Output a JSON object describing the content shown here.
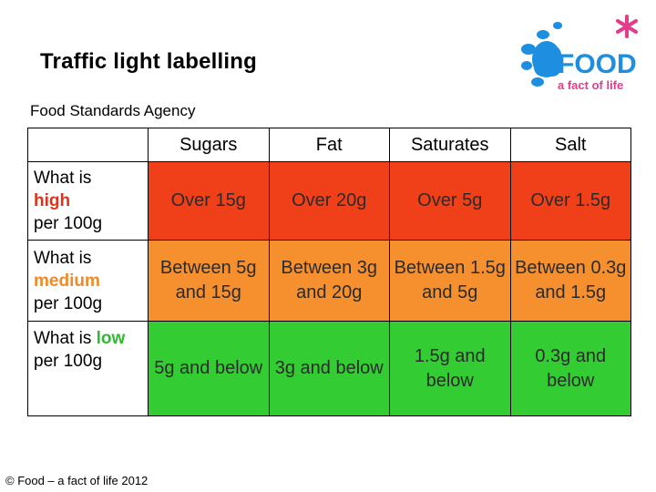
{
  "title": "Traffic light labelling",
  "subtitle": "Food Standards Agency",
  "logo": {
    "word": "FOOD",
    "tagline": "a fact of life",
    "colors": [
      "#1e8fe0",
      "#e23c8c"
    ]
  },
  "footer": "© Food – a fact of life 2012",
  "table": {
    "headers": [
      "",
      "Sugars",
      "Fat",
      "Saturates",
      "Salt"
    ],
    "rows": [
      {
        "label_pre": "What is",
        "label_key": "high",
        "label_post": "per 100g",
        "color": "#f0401a",
        "cells": [
          "Over 15g",
          "Over 20g",
          "Over 5g",
          "Over 1.5g"
        ]
      },
      {
        "label_pre": "What is",
        "label_key": "medium",
        "label_post": "per 100g",
        "color": "#f6902e",
        "cells": [
          "Between 5g and 15g",
          "Between 3g and 20g",
          "Between 1.5g and 5g",
          "Between 0.3g and 1.5g"
        ]
      },
      {
        "label_pre": "What is",
        "label_key": "low",
        "label_post": "per 100g",
        "color": "#33cc33",
        "cells": [
          "5g and below",
          "3g and below",
          "1.5g and below",
          "0.3g and below"
        ]
      }
    ]
  }
}
